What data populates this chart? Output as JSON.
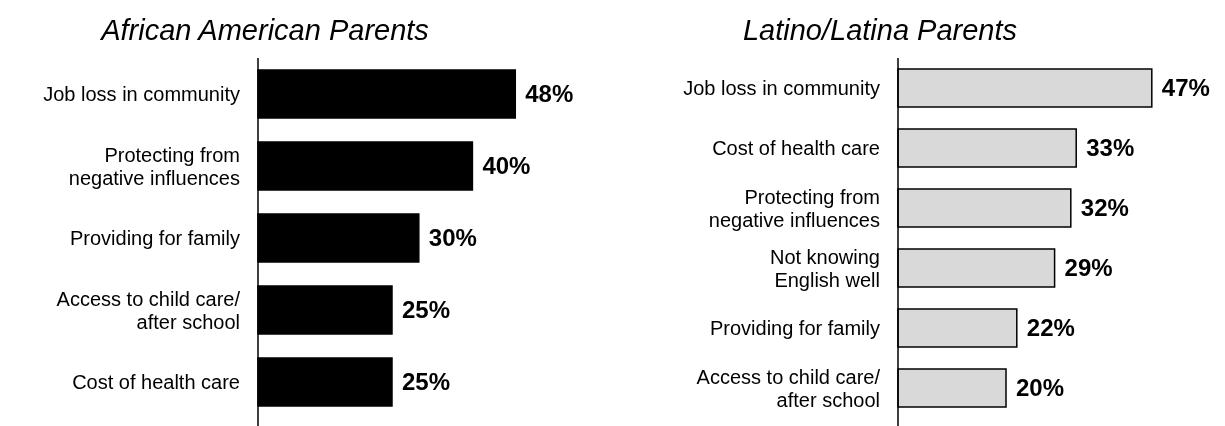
{
  "chart_data": [
    {
      "type": "bar",
      "orientation": "horizontal",
      "title": "African American Parents",
      "categories": [
        "Job loss in community",
        "Protecting from\nnegative influences",
        "Providing for family",
        "Access to child care/\nafter school",
        "Cost of health care"
      ],
      "values": [
        48,
        40,
        30,
        25,
        25
      ],
      "value_labels": [
        "48%",
        "40%",
        "30%",
        "25%",
        "25%"
      ],
      "color": "#000000"
    },
    {
      "type": "bar",
      "orientation": "horizontal",
      "title": "Latino/Latina Parents",
      "categories": [
        "Job loss in community",
        "Cost of health care",
        "Protecting from\nnegative influences",
        "Not knowing\nEnglish well",
        "Providing for family",
        "Access to child care/\nafter school"
      ],
      "values": [
        47,
        33,
        32,
        29,
        22,
        20
      ],
      "value_labels": [
        "47%",
        "33%",
        "32%",
        "29%",
        "22%",
        "20%"
      ],
      "color": "#d9d9d9"
    }
  ]
}
